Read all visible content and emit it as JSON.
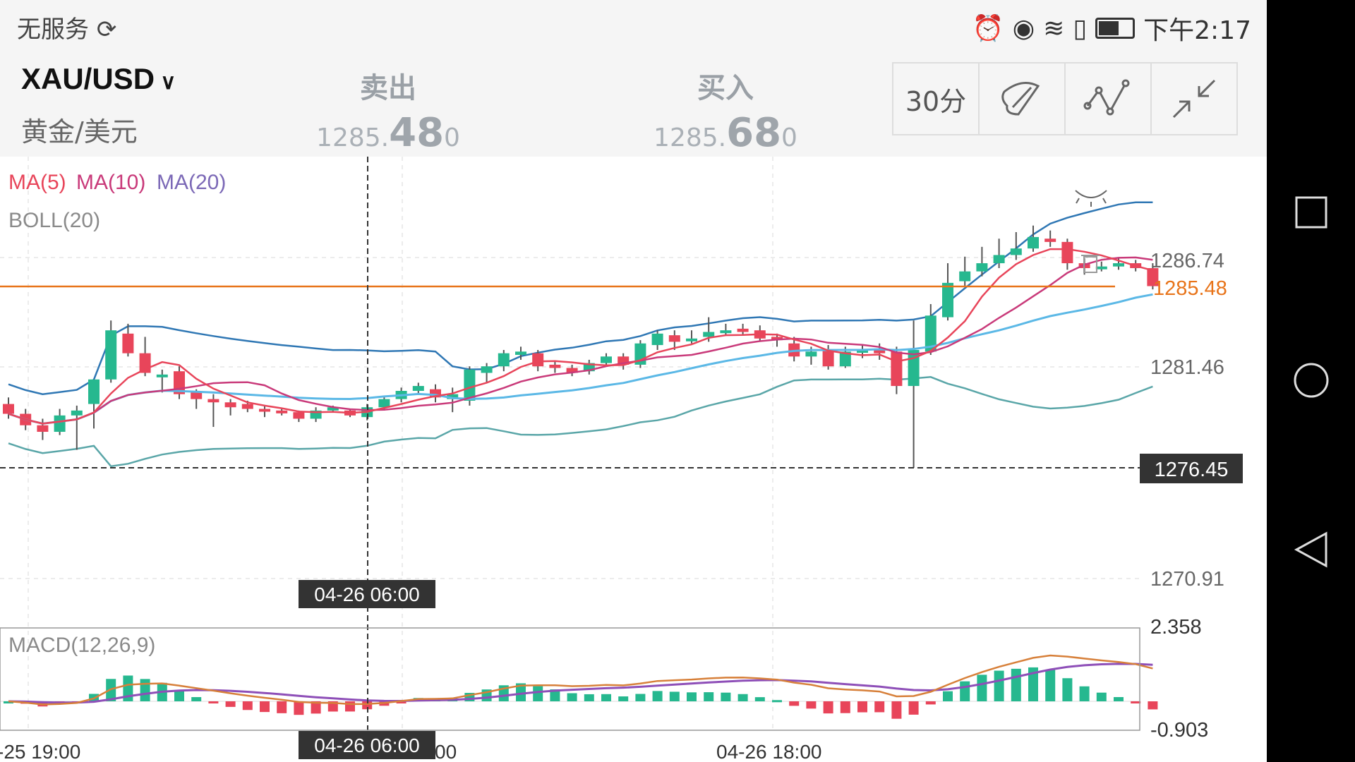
{
  "status_bar": {
    "carrier": "无服务",
    "time": "下午2:17"
  },
  "header": {
    "symbol": "XAU/USD",
    "symbol_desc": "黄金/美元",
    "sell": {
      "label": "卖出",
      "small1": "1285.",
      "big": "48",
      "small2": "0"
    },
    "buy": {
      "label": "买入",
      "small1": "1285.",
      "big": "68",
      "small2": "0"
    },
    "interval": "30分"
  },
  "indicators": {
    "ma5": "MA(5)",
    "ma10": "MA(10)",
    "ma20": "MA(20)",
    "boll": "BOLL(20)",
    "macd": "MACD(12,26,9)"
  },
  "crosshair": {
    "price": "1276.45",
    "time_label": "04-26 06:00",
    "time_label_bottom": "04-26 06:00"
  },
  "current_price": "1285.48",
  "x_labels": [
    "-25 19:00",
    "00",
    "04-26 18:00"
  ],
  "colors": {
    "up": "#26b88f",
    "down": "#e8455a",
    "price_line": "#e8741a",
    "ma5": "#e8455a",
    "ma10": "#c93a7a",
    "ma20": "#5bb8e6",
    "boll_up": "#2f77b4",
    "boll_low": "#5aa6a8",
    "macd_dif": "#d7803a",
    "macd_dea": "#8e4fb8"
  },
  "chart_data": {
    "type": "candlestick",
    "y_ticks": [
      "1286.74",
      "1281.46",
      "1270.91"
    ],
    "macd_ticks": [
      "2.358",
      "-0.903"
    ],
    "candles": [
      [
        1278.3,
        1277.7,
        1278.7,
        1277.4
      ],
      [
        1277.7,
        1277.0,
        1278.0,
        1276.7
      ],
      [
        1277.0,
        1276.6,
        1277.4,
        1276.1
      ],
      [
        1276.6,
        1277.6,
        1278.0,
        1276.4
      ],
      [
        1277.6,
        1277.9,
        1278.2,
        1275.5
      ],
      [
        1278.3,
        1279.8,
        1279.8,
        1276.8
      ],
      [
        1279.8,
        1282.8,
        1283.4,
        1279.6
      ],
      [
        1282.6,
        1281.4,
        1283.2,
        1281.2
      ],
      [
        1281.4,
        1280.2,
        1282.4,
        1280.0
      ],
      [
        1280.0,
        1280.1,
        1280.4,
        1279.0
      ],
      [
        1280.3,
        1278.9,
        1280.6,
        1278.6
      ],
      [
        1279.0,
        1278.6,
        1279.2,
        1278.0
      ],
      [
        1278.6,
        1278.4,
        1278.9,
        1276.9
      ],
      [
        1278.4,
        1278.1,
        1278.6,
        1277.6
      ],
      [
        1278.3,
        1278.0,
        1278.5,
        1277.8
      ],
      [
        1278.0,
        1277.9,
        1278.2,
        1277.5
      ],
      [
        1277.9,
        1277.8,
        1278.0,
        1277.6
      ],
      [
        1277.8,
        1277.4,
        1277.9,
        1277.2
      ],
      [
        1277.4,
        1277.9,
        1278.1,
        1277.2
      ],
      [
        1277.9,
        1278.1,
        1278.2,
        1277.8
      ],
      [
        1277.9,
        1277.6,
        1278.0,
        1277.5
      ],
      [
        1277.5,
        1278.1,
        1278.3,
        1277.3
      ],
      [
        1278.1,
        1278.6,
        1278.8,
        1277.9
      ],
      [
        1278.6,
        1279.1,
        1279.3,
        1278.4
      ],
      [
        1279.1,
        1279.4,
        1279.6,
        1278.9
      ],
      [
        1279.2,
        1278.7,
        1279.5,
        1278.4
      ],
      [
        1278.6,
        1278.9,
        1279.3,
        1277.8
      ],
      [
        1278.5,
        1280.4,
        1280.6,
        1278.2
      ],
      [
        1280.2,
        1280.6,
        1280.8,
        1279.6
      ],
      [
        1280.6,
        1281.4,
        1281.6,
        1280.3
      ],
      [
        1281.3,
        1281.5,
        1281.8,
        1281.0
      ],
      [
        1281.4,
        1280.6,
        1281.6,
        1280.3
      ],
      [
        1280.7,
        1280.5,
        1280.9,
        1280.2
      ],
      [
        1280.5,
        1280.2,
        1280.7,
        1280.0
      ],
      [
        1280.3,
        1280.8,
        1281.0,
        1280.1
      ],
      [
        1280.8,
        1281.2,
        1281.4,
        1280.6
      ],
      [
        1281.2,
        1280.7,
        1281.4,
        1280.4
      ],
      [
        1280.7,
        1282.0,
        1282.2,
        1280.5
      ],
      [
        1281.9,
        1282.6,
        1282.8,
        1281.6
      ],
      [
        1282.5,
        1282.1,
        1282.8,
        1281.6
      ],
      [
        1282.2,
        1282.3,
        1282.8,
        1282.0
      ],
      [
        1282.4,
        1282.7,
        1283.6,
        1282.1
      ],
      [
        1282.7,
        1282.8,
        1283.2,
        1282.5
      ],
      [
        1282.9,
        1282.7,
        1283.2,
        1282.5
      ],
      [
        1282.8,
        1282.3,
        1283.1,
        1282.1
      ],
      [
        1282.4,
        1282.2,
        1282.6,
        1281.8
      ],
      [
        1282.0,
        1281.2,
        1282.4,
        1280.9
      ],
      [
        1281.2,
        1281.5,
        1281.8,
        1280.7
      ],
      [
        1281.6,
        1280.6,
        1281.9,
        1280.4
      ],
      [
        1280.6,
        1281.5,
        1281.8,
        1280.5
      ],
      [
        1281.5,
        1281.6,
        1281.9,
        1281.1
      ],
      [
        1281.6,
        1281.4,
        1282.0,
        1281.0
      ],
      [
        1281.5,
        1279.4,
        1281.8,
        1278.9
      ],
      [
        1279.4,
        1281.6,
        1283.4,
        1274.4
      ],
      [
        1281.5,
        1283.7,
        1284.4,
        1281.3
      ],
      [
        1283.6,
        1285.7,
        1286.9,
        1283.4
      ],
      [
        1285.8,
        1286.4,
        1287.3,
        1285.5
      ],
      [
        1286.4,
        1286.9,
        1287.9,
        1286.1
      ],
      [
        1286.9,
        1287.4,
        1288.4,
        1286.6
      ],
      [
        1287.4,
        1287.8,
        1288.8,
        1287.1
      ],
      [
        1287.8,
        1288.5,
        1289.2,
        1287.6
      ],
      [
        1288.4,
        1288.2,
        1288.9,
        1287.9
      ],
      [
        1288.2,
        1286.9,
        1288.4,
        1286.5
      ],
      [
        1286.9,
        1286.6,
        1287.2,
        1286.2
      ],
      [
        1286.6,
        1286.7,
        1287.0,
        1286.4
      ],
      [
        1286.7,
        1286.9,
        1287.2,
        1286.5
      ],
      [
        1286.9,
        1286.6,
        1287.1,
        1286.4
      ],
      [
        1286.6,
        1285.5,
        1286.9,
        1285.3
      ]
    ]
  }
}
